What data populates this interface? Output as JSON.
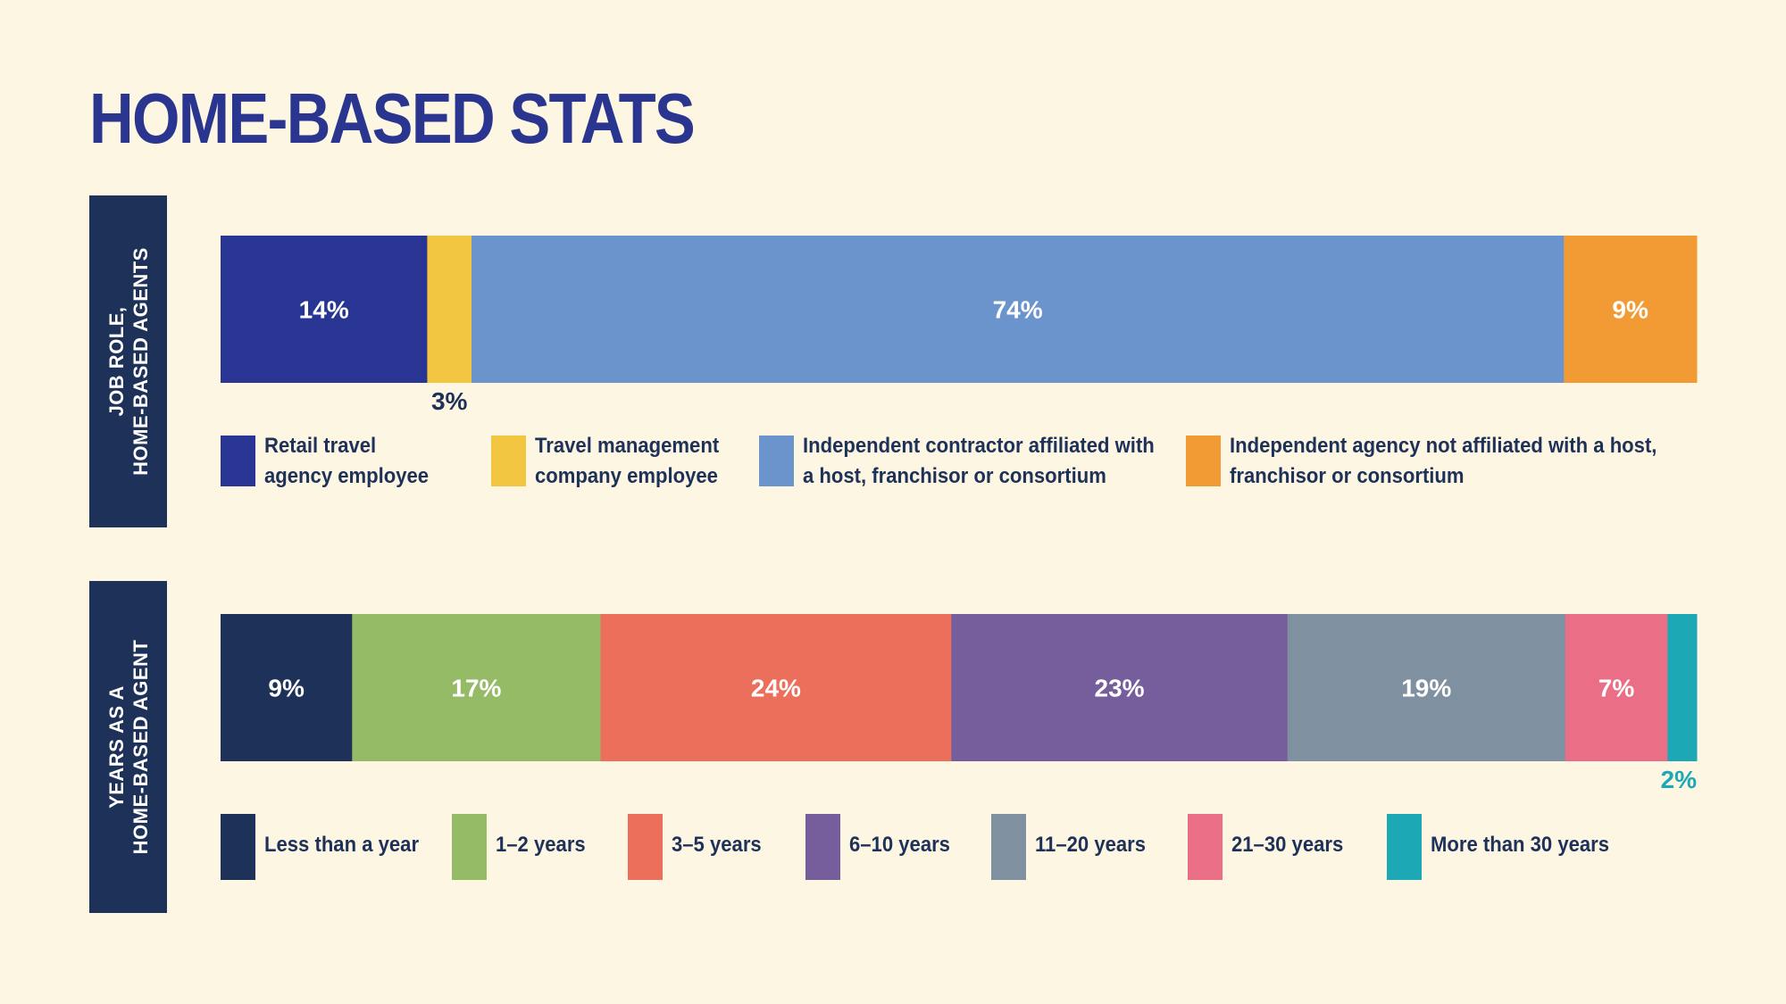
{
  "title": "HOME-BASED STATS",
  "chart_data": [
    {
      "type": "bar",
      "orientation": "horizontal-stacked",
      "side_label": [
        "JOB ROLE,",
        "HOME-BASED AGENTS"
      ],
      "categories": [
        "Retail travel\n agency employee",
        "Travel management\ncompany employee",
        "Independent contractor affiliated with\na host, franchisor or consortium",
        "Independent agency not affiliated with a host,\nfranchisor or consortium"
      ],
      "values": [
        14,
        3,
        74,
        9
      ],
      "labels": [
        "14%",
        "3%",
        "74%",
        "9%"
      ],
      "colors": [
        "#283593",
        "#f2c541",
        "#6b93cc",
        "#f29b35"
      ],
      "label_colors": [
        "#ffffff",
        "#1e3158",
        "#ffffff",
        "#ffffff"
      ],
      "legend": "bottom"
    },
    {
      "type": "bar",
      "orientation": "horizontal-stacked",
      "side_label": [
        "YEARS AS A",
        "HOME-BASED AGENT"
      ],
      "categories": [
        "Less than a year",
        "1–2 years",
        "3–5 years",
        "6–10 years",
        "11–20 years",
        "21–30 years",
        "More than 30 years"
      ],
      "values": [
        9,
        17,
        24,
        23,
        19,
        7,
        2
      ],
      "labels": [
        "9%",
        "17%",
        "24%",
        "23%",
        "19%",
        "7%",
        "2%"
      ],
      "colors": [
        "#1e3158",
        "#95bb67",
        "#ec6f5b",
        "#765d9c",
        "#7f90a1",
        "#ea6f86",
        "#1ca8b5"
      ],
      "label_colors": [
        "#ffffff",
        "#ffffff",
        "#ffffff",
        "#ffffff",
        "#ffffff",
        "#ffffff",
        "#1ca8b5"
      ],
      "legend": "bottom"
    }
  ]
}
